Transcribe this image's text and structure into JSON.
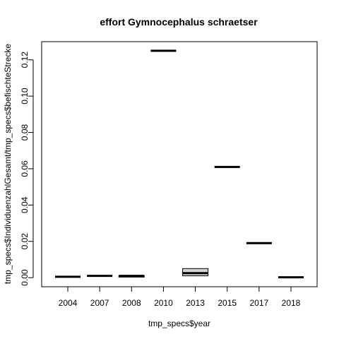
{
  "chart_data": {
    "type": "boxplot",
    "title": "effort Gymnocephalus schraetser",
    "xlabel": "tmp_specs$year",
    "ylabel": "tmp_specs$IndividuenzahlGesamt/tmp_specs$befischteStrecke",
    "ylim": [
      -0.005,
      0.13
    ],
    "yticks": [
      "0.00",
      "0.02",
      "0.04",
      "0.06",
      "0.08",
      "0.10",
      "0.12"
    ],
    "grid": false,
    "categories": [
      "2004",
      "2007",
      "2008",
      "2010",
      "2013",
      "2015",
      "2017",
      "2018"
    ],
    "boxes": [
      {
        "label": "2004",
        "q1": 0.0005,
        "median": 0.0005,
        "q3": 0.0005
      },
      {
        "label": "2007",
        "q1": 0.001,
        "median": 0.001,
        "q3": 0.001
      },
      {
        "label": "2008",
        "q1": 0.0003,
        "median": 0.001,
        "q3": 0.001
      },
      {
        "label": "2010",
        "q1": 0.125,
        "median": 0.125,
        "q3": 0.125
      },
      {
        "label": "2013",
        "q1": 0.001,
        "median": 0.0025,
        "q3": 0.005
      },
      {
        "label": "2015",
        "q1": 0.061,
        "median": 0.061,
        "q3": 0.061
      },
      {
        "label": "2017",
        "q1": 0.019,
        "median": 0.019,
        "q3": 0.019
      },
      {
        "label": "2018",
        "q1": 0.0002,
        "median": 0.0002,
        "q3": 0.0002
      }
    ],
    "box_fill": "#d3d3d3",
    "line_color": "#000000"
  }
}
